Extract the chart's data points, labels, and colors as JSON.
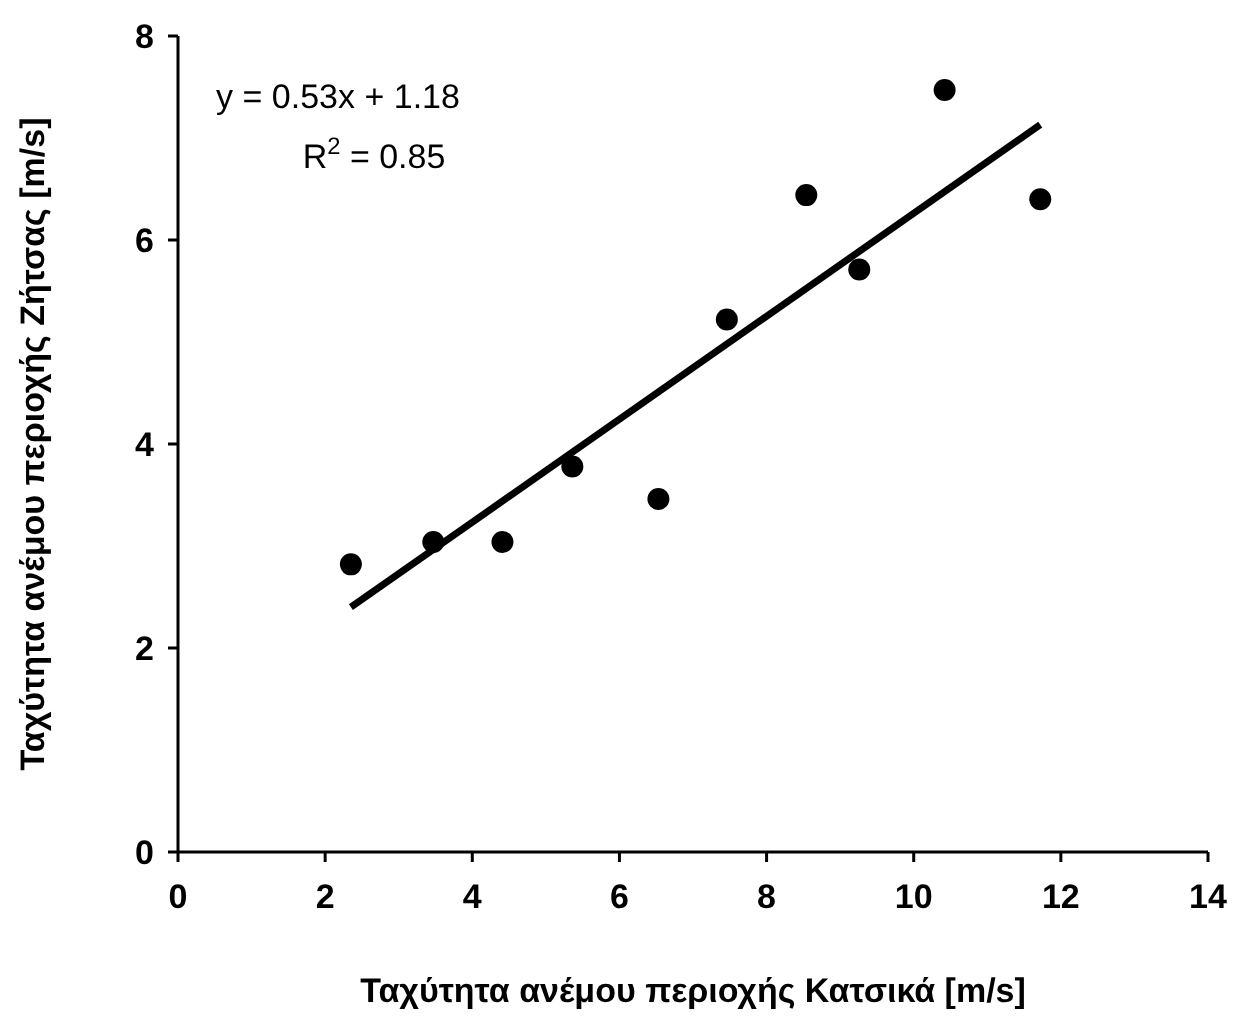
{
  "chart_data": {
    "type": "scatter",
    "xlabel": "Ταχύτητα ανέμου περιοχής Κατσικά [m/s]",
    "ylabel": "Ταχύτητα ανέμου περιοχής Ζήτσας [m/s]",
    "xlim": [
      0,
      14
    ],
    "xticks": [
      0,
      2,
      4,
      6,
      8,
      10,
      12,
      14
    ],
    "ylim": [
      0,
      8
    ],
    "yticks": [
      0,
      2,
      4,
      6,
      8
    ],
    "grid": false,
    "annotations": [
      "y = 0.53x + 1.18",
      "R$^{2}$ = 0.85"
    ],
    "series": [
      {
        "marker": "circle",
        "color": "#000000",
        "x": [
          2.35,
          3.47,
          4.41,
          5.36,
          6.53,
          7.46,
          8.54,
          9.26,
          10.42,
          11.72
        ],
        "values": [
          2.82,
          3.04,
          3.04,
          3.78,
          3.46,
          5.22,
          6.44,
          5.71,
          7.47,
          6.4
        ]
      },
      {
        "type": "line",
        "color": "#000000",
        "x": [
          2.35,
          11.72
        ],
        "values": [
          2.4,
          7.13
        ]
      }
    ]
  }
}
